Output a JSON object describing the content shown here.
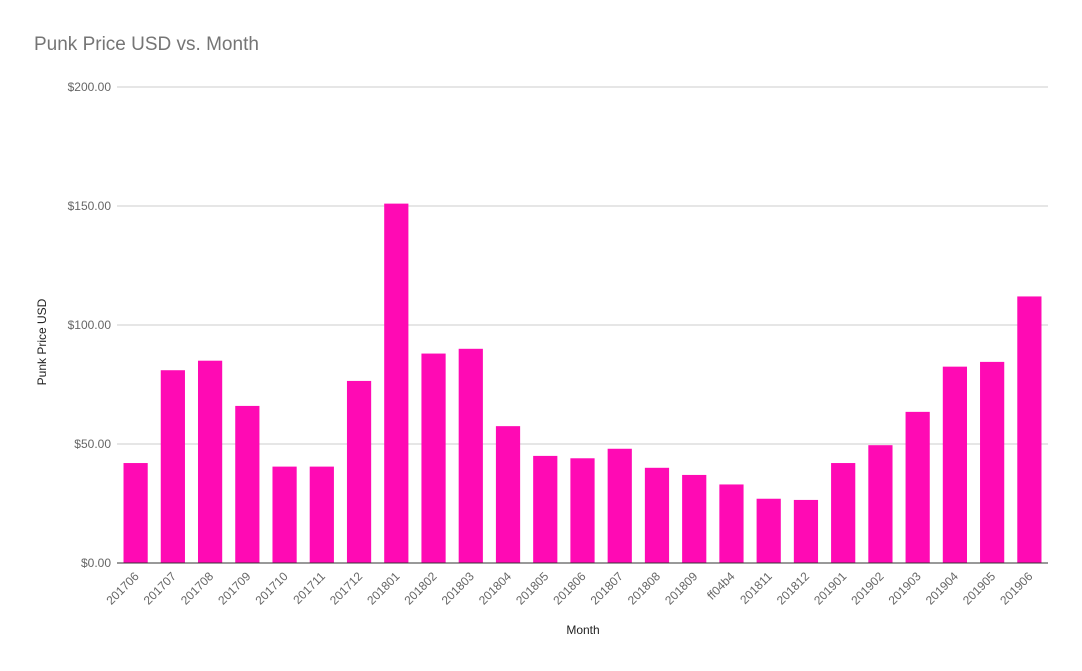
{
  "chart_data": {
    "type": "bar",
    "title": "Punk Price USD vs. Month",
    "xlabel": "Month",
    "ylabel": "Punk Price USD",
    "ylim": [
      0,
      200
    ],
    "yticks": [
      "$0.00",
      "$50.00",
      "$100.00",
      "$150.00",
      "$200.00"
    ],
    "ytick_values": [
      0,
      50,
      100,
      150,
      200
    ],
    "grid": true,
    "legend": "none",
    "bar_color": "#ff0ab4",
    "categories": [
      "201706",
      "201707",
      "201708",
      "201709",
      "201710",
      "201711",
      "201712",
      "201801",
      "201802",
      "201803",
      "201804",
      "201805",
      "201806",
      "201807",
      "201808",
      "201809",
      "ff04b4",
      "201811",
      "201812",
      "201901",
      "201902",
      "201903",
      "201904",
      "201905",
      "201906"
    ],
    "values": [
      42,
      81,
      85,
      66,
      40.5,
      40.5,
      76.5,
      151,
      88,
      90,
      57.5,
      45,
      44,
      48,
      40,
      37,
      33,
      27,
      26.5,
      42,
      49.5,
      63.5,
      82.5,
      84.5,
      112
    ]
  }
}
